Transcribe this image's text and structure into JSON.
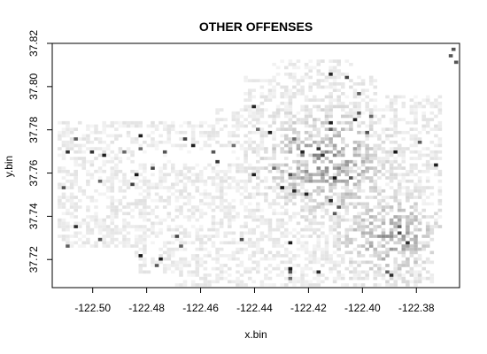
{
  "chart_data": {
    "type": "heatmap",
    "title": "OTHER OFFENSES",
    "xlabel": "x.bin",
    "ylabel": "y.bin",
    "xlim": [
      -122.515,
      -122.364
    ],
    "ylim": [
      37.707,
      37.82
    ],
    "x_ticks": [
      -122.5,
      -122.48,
      -122.46,
      -122.44,
      -122.42,
      -122.4,
      -122.38
    ],
    "x_tick_labels": [
      "-122.50",
      "-122.48",
      "-122.46",
      "-122.44",
      "-122.42",
      "-122.40",
      "-122.38"
    ],
    "y_ticks": [
      37.72,
      37.74,
      37.76,
      37.78,
      37.8,
      37.82
    ],
    "y_tick_labels": [
      "37.72",
      "37.74",
      "37.76",
      "37.78",
      "37.80",
      "37.82"
    ],
    "bin_size": 0.001,
    "color_scale": {
      "low": "#ffffff",
      "high": "#000000"
    },
    "grid": false
  }
}
